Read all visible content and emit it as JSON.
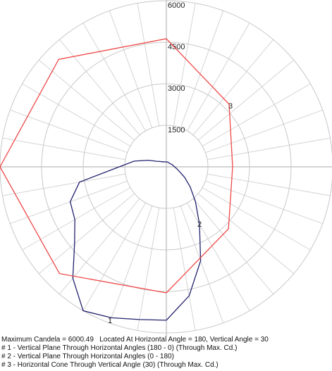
{
  "chart_data": {
    "type": "polar",
    "title": "Maximum Candela = 6000.49   Located At Horizontal Angle = 180, Vertical Angle = 30",
    "rlim": [
      0,
      6000
    ],
    "rticks": [
      1500,
      3000,
      4500,
      6000
    ],
    "grid": true,
    "series": [
      {
        "name": "# 1 - Vertical Plane Through Horizontal Angles (180 - 0) (Through Max. Cd.)",
        "label": "1",
        "color": "#22226e",
        "angles": [
          0,
          10,
          20,
          30,
          40,
          50,
          60,
          70,
          80,
          90,
          100,
          110,
          120,
          130,
          140,
          150,
          160,
          170,
          180
        ],
        "values": [
          5540,
          5600,
          5800,
          6000,
          5250,
          4320,
          3810,
          3690,
          3180,
          1700,
          1180,
          700,
          400,
          300,
          240,
          210,
          190,
          180,
          180
        ]
      },
      {
        "name": "# 2 - Vertical Plane Through Horizontal Angles (0 - 180)",
        "label": "2",
        "color": "#22226e",
        "angles": [
          180,
          190,
          200,
          210,
          220,
          230,
          240,
          250,
          260,
          270,
          280,
          290,
          300,
          310,
          320,
          330,
          340,
          350,
          360
        ],
        "values": [
          180,
          178,
          175,
          172,
          170,
          180,
          200,
          230,
          250,
          300,
          380,
          510,
          760,
          1120,
          1630,
          2390,
          3610,
          4730,
          5540
        ]
      },
      {
        "name": "# 3 - Horizontal Cone Through Vertical Angle (30) (Through Max. Cd.)",
        "label": "3",
        "color": "#f04848",
        "angles": [
          0,
          45,
          90,
          135,
          180,
          225,
          270,
          315
        ],
        "values": [
          4550,
          5450,
          6000,
          5490,
          4627,
          3200,
          2390,
          3166
        ]
      }
    ]
  }
}
